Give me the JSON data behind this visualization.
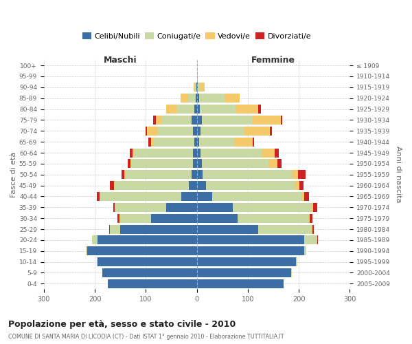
{
  "age_groups": [
    "0-4",
    "5-9",
    "10-14",
    "15-19",
    "20-24",
    "25-29",
    "30-34",
    "35-39",
    "40-44",
    "45-49",
    "50-54",
    "55-59",
    "60-64",
    "65-69",
    "70-74",
    "75-79",
    "80-84",
    "85-89",
    "90-94",
    "95-99",
    "100+"
  ],
  "birth_years": [
    "2005-2009",
    "2000-2004",
    "1995-1999",
    "1990-1994",
    "1985-1989",
    "1980-1984",
    "1975-1979",
    "1970-1974",
    "1965-1969",
    "1960-1964",
    "1955-1959",
    "1950-1954",
    "1945-1949",
    "1940-1944",
    "1935-1939",
    "1930-1934",
    "1925-1929",
    "1920-1924",
    "1915-1919",
    "1910-1914",
    "≤ 1909"
  ],
  "male_celibe": [
    175,
    185,
    195,
    215,
    195,
    150,
    90,
    60,
    30,
    15,
    10,
    8,
    8,
    5,
    8,
    10,
    5,
    2,
    1,
    0,
    0
  ],
  "male_coniugato": [
    0,
    0,
    1,
    3,
    10,
    20,
    60,
    100,
    160,
    145,
    130,
    120,
    115,
    80,
    68,
    60,
    35,
    15,
    3,
    0,
    0
  ],
  "male_vedovo": [
    0,
    0,
    0,
    0,
    0,
    1,
    1,
    1,
    1,
    2,
    2,
    2,
    3,
    5,
    22,
    10,
    20,
    15,
    2,
    0,
    0
  ],
  "male_divorziato": [
    0,
    0,
    0,
    0,
    0,
    1,
    5,
    3,
    5,
    8,
    5,
    5,
    5,
    5,
    2,
    5,
    0,
    0,
    0,
    0,
    0
  ],
  "female_nubile": [
    170,
    185,
    195,
    210,
    210,
    120,
    80,
    70,
    30,
    18,
    12,
    10,
    8,
    5,
    8,
    10,
    6,
    4,
    2,
    1,
    0
  ],
  "female_coniugata": [
    0,
    1,
    2,
    5,
    25,
    105,
    140,
    155,
    175,
    175,
    175,
    130,
    120,
    70,
    85,
    100,
    70,
    50,
    5,
    0,
    0
  ],
  "female_vedova": [
    0,
    0,
    0,
    0,
    1,
    2,
    2,
    3,
    5,
    8,
    12,
    18,
    25,
    35,
    50,
    55,
    45,
    30,
    8,
    1,
    0
  ],
  "female_divorziata": [
    0,
    0,
    0,
    0,
    1,
    2,
    5,
    8,
    10,
    8,
    15,
    8,
    8,
    3,
    5,
    3,
    5,
    0,
    0,
    0,
    0
  ],
  "colors": {
    "celibe": "#3A6EA5",
    "coniugato": "#C8D9A4",
    "vedovo": "#F5C96A",
    "divorziato": "#CC2222"
  },
  "xlim": 300,
  "title": "Popolazione per età, sesso e stato civile - 2010",
  "subtitle": "COMUNE DI SANTA MARIA DI LICODIA (CT) - Dati ISTAT 1° gennaio 2010 - Elaborazione TUTTITALIA.IT",
  "ylabel_left": "Fasce di età",
  "ylabel_right": "Anni di nascita",
  "legend_labels": [
    "Celibi/Nubili",
    "Coniugati/e",
    "Vedovi/e",
    "Divorziati/e"
  ],
  "maschi_label": "Maschi",
  "femmine_label": "Femmine",
  "bg_color": "#FFFFFF",
  "grid_color": "#CCCCCC",
  "bar_height": 0.82
}
